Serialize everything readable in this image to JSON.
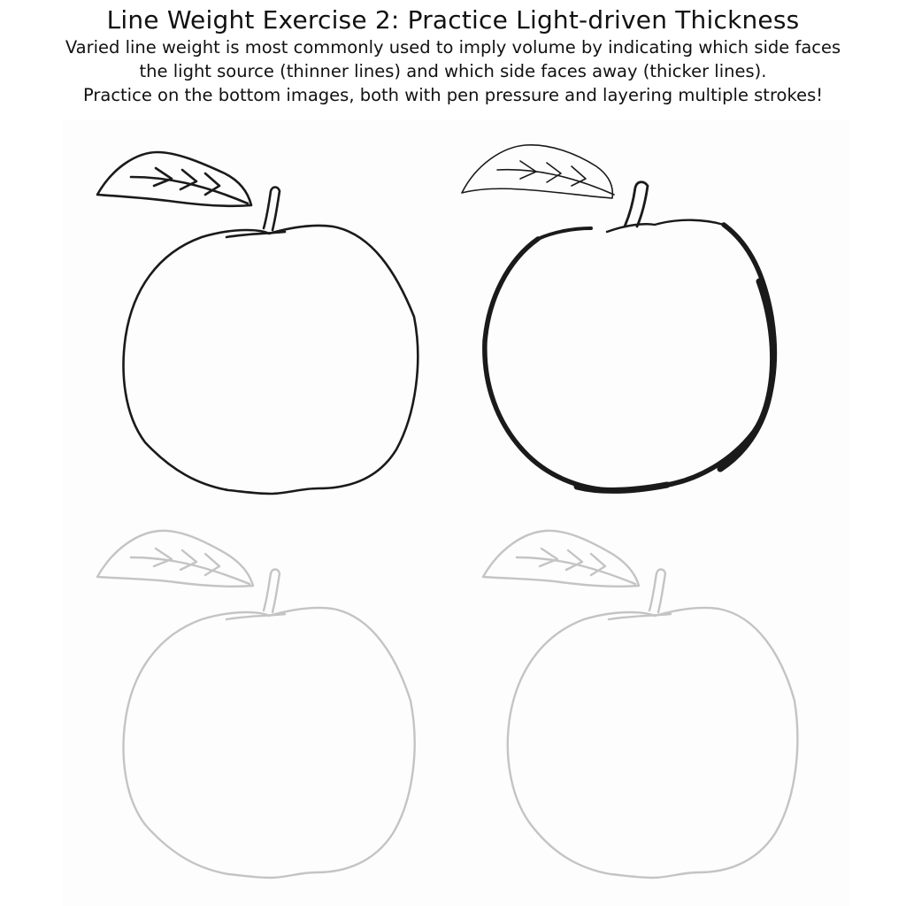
{
  "worksheet": {
    "title": "Line Weight Exercise 2: Practice Light-driven Thickness",
    "description_lines": [
      "Varied line weight is most commonly used to imply volume by indicating which side faces",
      "the light source (thinner lines) and which side faces away (thicker lines).",
      "Practice on the bottom images, both with pen pressure and layering multiple strokes!"
    ]
  },
  "colors": {
    "ink": "#1a1a1a",
    "trace": "#c4c4c4",
    "sheet": "#fdfdfd"
  },
  "apples": [
    {
      "id": "example-uniform-line",
      "style": "uniform"
    },
    {
      "id": "example-weighted-line",
      "style": "weighted"
    },
    {
      "id": "practice-left",
      "style": "trace"
    },
    {
      "id": "practice-right",
      "style": "trace"
    }
  ]
}
